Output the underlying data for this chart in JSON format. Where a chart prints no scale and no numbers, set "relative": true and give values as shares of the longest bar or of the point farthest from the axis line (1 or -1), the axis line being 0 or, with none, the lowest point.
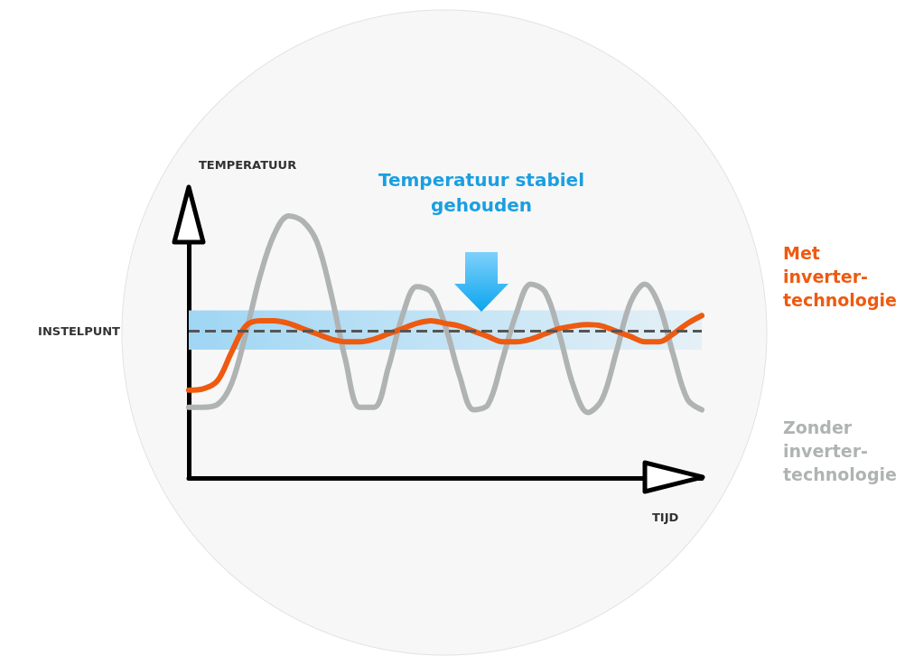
{
  "chart_data": {
    "type": "line",
    "relative": true,
    "xlabel": "TIJD",
    "ylabel": "TEMPERATUUR",
    "marker": "none",
    "line_style": "solid",
    "legend": "right",
    "annotations": [
      "Temperatuur stabiel gehouden"
    ],
    "categories": [
      null,
      null,
      null,
      null,
      null,
      null,
      null,
      null,
      null,
      null,
      null,
      null,
      null,
      null,
      null,
      null,
      null,
      null,
      null,
      null,
      null,
      null,
      null,
      null,
      null,
      null,
      null,
      null,
      null,
      null,
      null,
      null,
      null,
      null,
      null,
      null,
      null
    ],
    "series": [
      {
        "name": "Zonder inverter-technologie",
        "color": "#b0b3b3",
        "values": [
          0.27,
          0.27,
          0.28,
          0.36,
          0.55,
          0.77,
          0.93,
          1,
          0.98,
          0.9,
          0.7,
          0.45,
          0.27,
          0.27,
          0.42,
          0.62,
          0.73,
          0.71,
          0.58,
          0.39,
          0.26,
          0.28,
          0.45,
          0.63,
          0.74,
          0.71,
          0.55,
          0.35,
          0.25,
          0.3,
          0.48,
          0.67,
          0.74,
          0.66,
          0.47,
          0.3,
          0.26
        ]
      },
      {
        "name": "Met inverter-technologie",
        "color": "#ee5a10",
        "values": [
          0.335,
          0.34,
          0.37,
          0.48,
          0.58,
          0.6,
          0.6,
          0.59,
          0.57,
          0.55,
          0.53,
          0.52,
          0.52,
          0.53,
          0.55,
          0.57,
          0.59,
          0.6,
          0.59,
          0.58,
          0.56,
          0.54,
          0.52,
          0.52,
          0.53,
          0.55,
          0.57,
          0.58,
          0.585,
          0.58,
          0.56,
          0.54,
          0.52,
          0.52,
          0.55,
          0.59,
          0.62
        ]
      }
    ],
    "ref_lines": [
      {
        "axis": "y",
        "value": 0.56,
        "label": "INSTELPUNT",
        "color": "#555555",
        "line_style": "dashed"
      }
    ],
    "bands": [
      {
        "axis": "y",
        "from": 0.49,
        "to": 0.64,
        "color": "#9fd6f4"
      }
    ]
  }
}
